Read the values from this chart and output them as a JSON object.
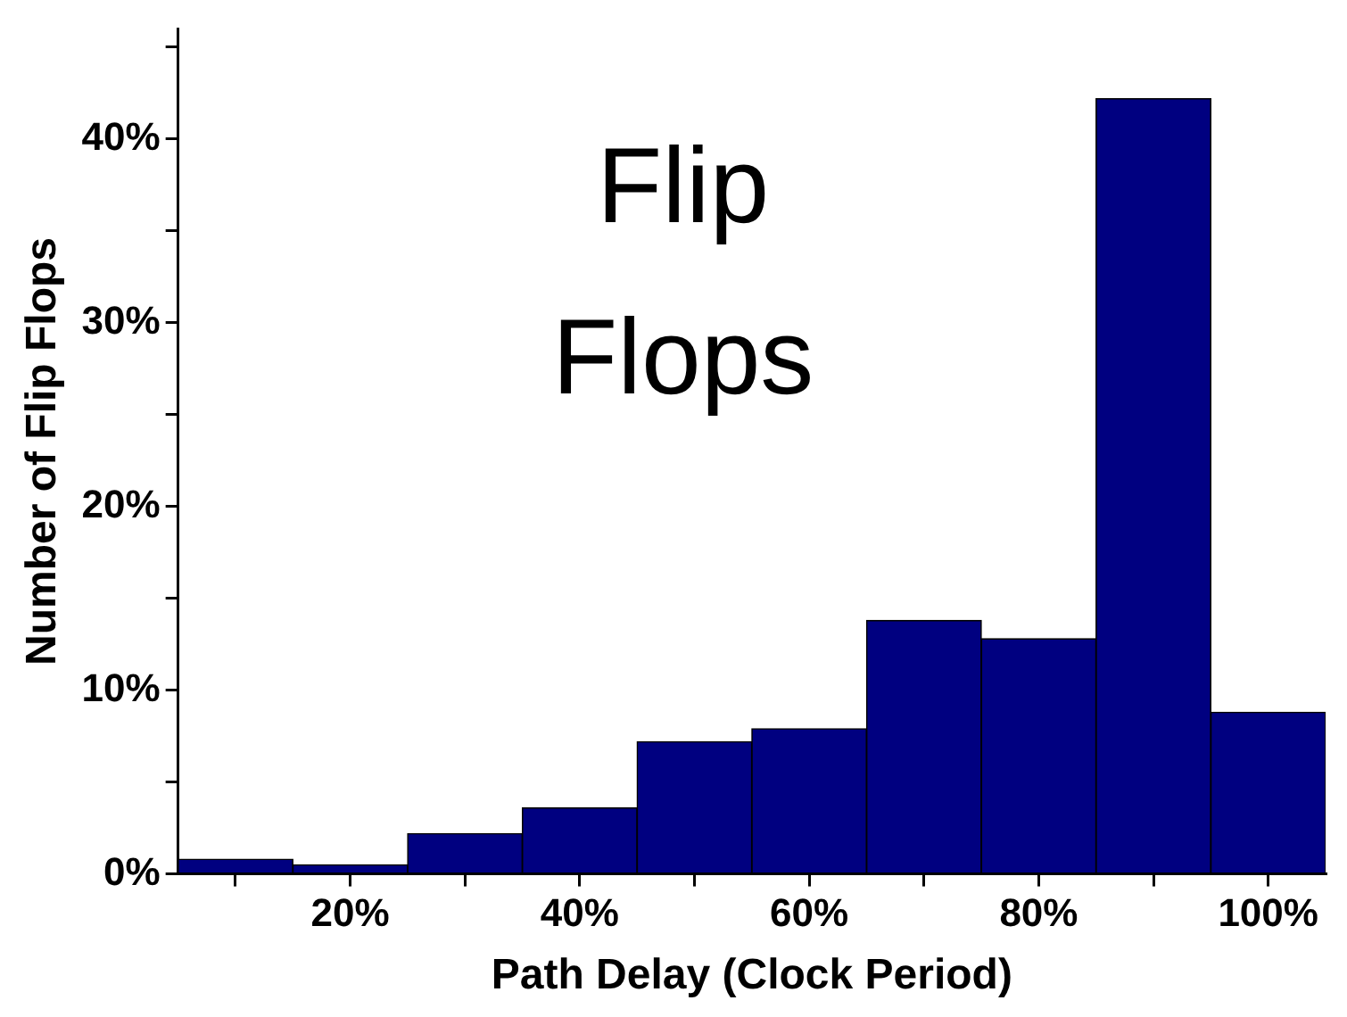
{
  "chart_data": {
    "type": "histogram",
    "xlabel": "Path Delay (Clock Period)",
    "ylabel": "Number of Flip Flops",
    "annotations": [
      "Flip Flops"
    ],
    "bins": [
      5,
      15,
      25,
      35,
      45,
      55,
      65,
      75,
      85,
      95,
      105
    ],
    "values": [
      0.8,
      0.5,
      2.2,
      3.6,
      7.2,
      7.9,
      13.8,
      12.8,
      42.2,
      8.8
    ],
    "color": "#000080",
    "xlim": [
      5,
      105
    ],
    "xticks": [
      {
        "value": 10,
        "label": null
      },
      {
        "value": 20,
        "label": "20%"
      },
      {
        "value": 30,
        "label": null
      },
      {
        "value": 40,
        "label": "40%"
      },
      {
        "value": 50,
        "label": null
      },
      {
        "value": 60,
        "label": "60%"
      },
      {
        "value": 70,
        "label": null
      },
      {
        "value": 80,
        "label": "80%"
      },
      {
        "value": 90,
        "label": null
      },
      {
        "value": 100,
        "label": "100%"
      }
    ],
    "ylim": [
      0,
      46
    ],
    "yticks": [
      {
        "value": 0,
        "label": "0%"
      },
      {
        "value": 5,
        "label": null
      },
      {
        "value": 10,
        "label": "10%"
      },
      {
        "value": 15,
        "label": null
      },
      {
        "value": 20,
        "label": "20%"
      },
      {
        "value": 25,
        "label": null
      },
      {
        "value": 30,
        "label": "30%"
      },
      {
        "value": 35,
        "label": null
      },
      {
        "value": 40,
        "label": "40%"
      },
      {
        "value": 45,
        "label": null
      }
    ],
    "grid": false,
    "legend": false
  }
}
